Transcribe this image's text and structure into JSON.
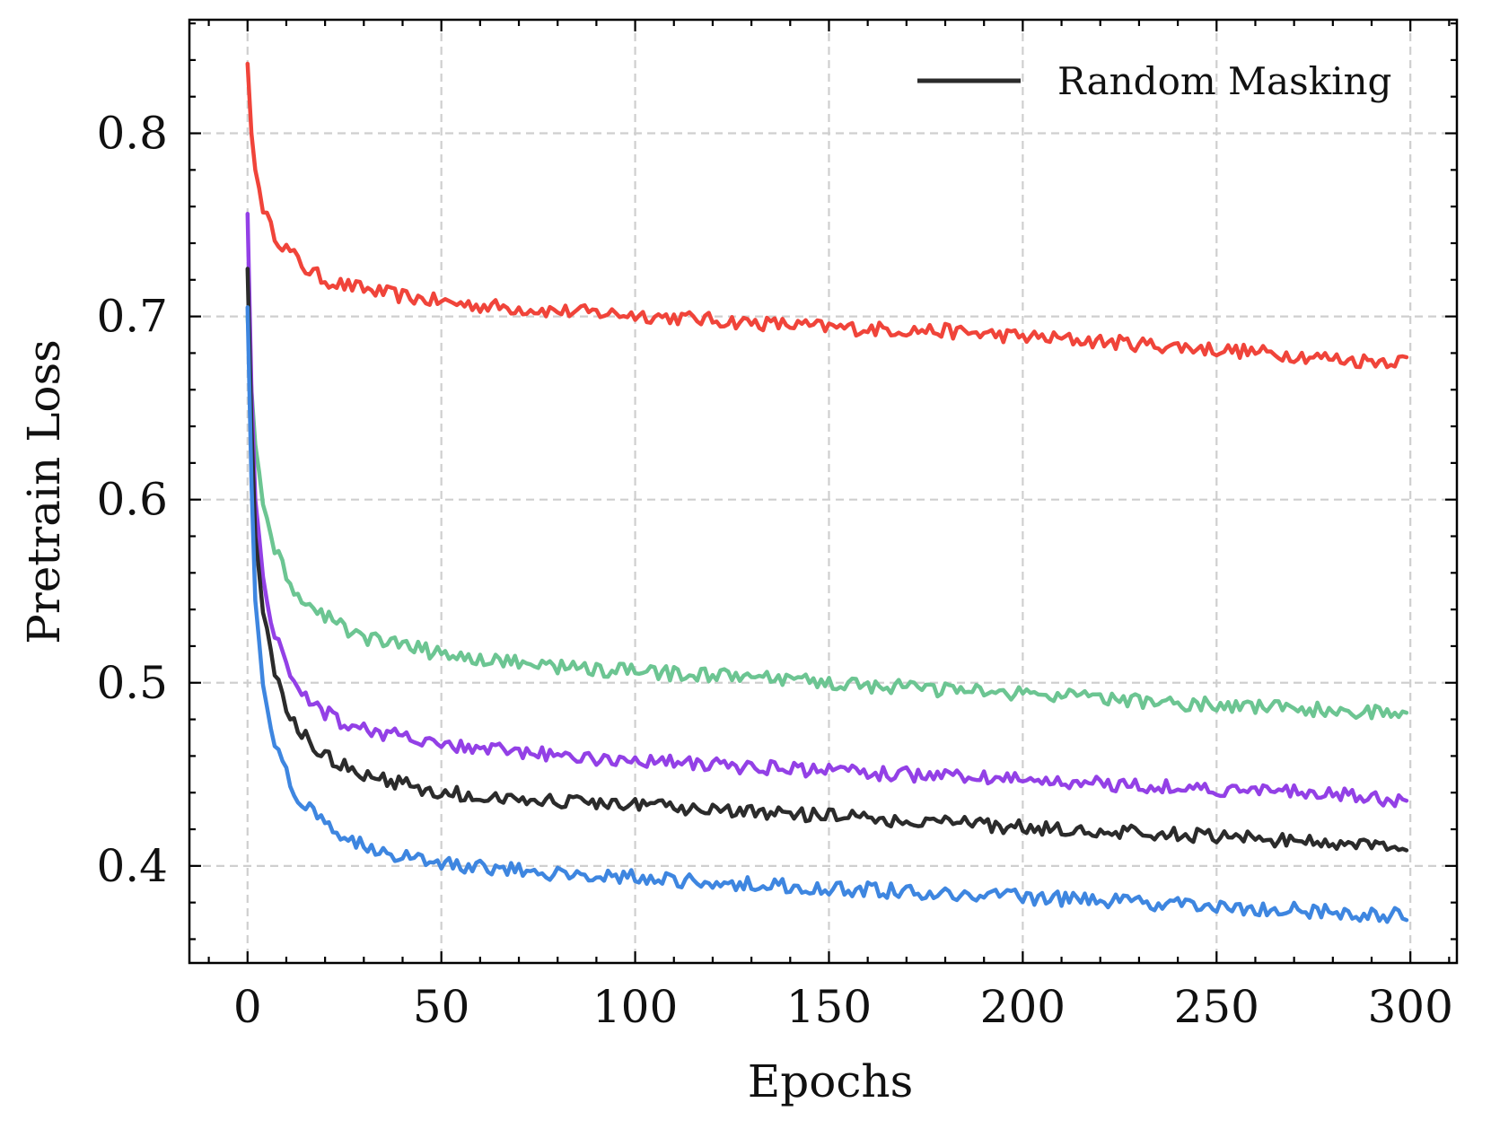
{
  "chart_data": {
    "type": "line",
    "title": "",
    "xlabel": "Epochs",
    "ylabel": "Pretrain Loss",
    "xlim": [
      -15,
      312
    ],
    "ylim": [
      0.347,
      0.862
    ],
    "xticks": [
      0,
      50,
      100,
      150,
      200,
      250,
      300
    ],
    "xtick_labels": [
      "0",
      "50",
      "100",
      "150",
      "200",
      "250",
      "300"
    ],
    "yticks": [
      0.4,
      0.5,
      0.6,
      0.7,
      0.8
    ],
    "ytick_labels": [
      "0.4",
      "0.5",
      "0.6",
      "0.7",
      "0.8"
    ],
    "x_minor_step": 10,
    "y_minor_step": 0.02,
    "grid": true,
    "legend": {
      "position": "top-right",
      "entries": [
        {
          "label": "Random Masking",
          "color": "#2b2b2b"
        }
      ]
    },
    "series": [
      {
        "name": "red",
        "color": "#f0443a",
        "x": [
          0,
          1,
          2,
          4,
          6,
          8,
          10,
          12,
          15,
          20,
          25,
          30,
          40,
          50,
          60,
          80,
          100,
          120,
          150,
          180,
          200,
          230,
          250,
          270,
          285,
          299
        ],
        "y": [
          0.838,
          0.8,
          0.78,
          0.76,
          0.748,
          0.742,
          0.737,
          0.733,
          0.726,
          0.72,
          0.717,
          0.715,
          0.711,
          0.708,
          0.706,
          0.703,
          0.701,
          0.698,
          0.694,
          0.692,
          0.689,
          0.685,
          0.682,
          0.679,
          0.676,
          0.676
        ]
      },
      {
        "name": "green",
        "color": "#6cc592",
        "x": [
          0,
          1,
          2,
          4,
          6,
          8,
          10,
          12,
          15,
          20,
          25,
          30,
          40,
          50,
          60,
          80,
          100,
          120,
          150,
          180,
          200,
          230,
          250,
          270,
          285,
          299
        ],
        "y": [
          0.7,
          0.66,
          0.63,
          0.6,
          0.58,
          0.568,
          0.558,
          0.55,
          0.543,
          0.536,
          0.53,
          0.525,
          0.52,
          0.516,
          0.513,
          0.509,
          0.506,
          0.504,
          0.5,
          0.496,
          0.494,
          0.49,
          0.488,
          0.486,
          0.484,
          0.483
        ]
      },
      {
        "name": "purple",
        "color": "#9340e6",
        "x": [
          0,
          1,
          2,
          4,
          6,
          8,
          10,
          12,
          15,
          20,
          25,
          30,
          40,
          50,
          60,
          80,
          100,
          120,
          150,
          180,
          200,
          230,
          250,
          270,
          285,
          299
        ],
        "y": [
          0.756,
          0.66,
          0.6,
          0.56,
          0.535,
          0.52,
          0.508,
          0.5,
          0.493,
          0.484,
          0.478,
          0.475,
          0.47,
          0.466,
          0.464,
          0.46,
          0.458,
          0.455,
          0.452,
          0.449,
          0.447,
          0.444,
          0.442,
          0.44,
          0.438,
          0.436
        ]
      },
      {
        "name": "Random Masking",
        "color": "#2b2b2b",
        "x": [
          0,
          1,
          2,
          4,
          6,
          8,
          10,
          12,
          15,
          20,
          25,
          30,
          40,
          50,
          60,
          80,
          100,
          120,
          150,
          180,
          200,
          230,
          250,
          270,
          285,
          299
        ],
        "y": [
          0.726,
          0.64,
          0.58,
          0.54,
          0.515,
          0.498,
          0.485,
          0.477,
          0.47,
          0.46,
          0.455,
          0.45,
          0.445,
          0.44,
          0.438,
          0.435,
          0.433,
          0.43,
          0.427,
          0.424,
          0.421,
          0.418,
          0.416,
          0.414,
          0.412,
          0.41
        ]
      },
      {
        "name": "blue",
        "color": "#3e86e0",
        "x": [
          0,
          1,
          2,
          4,
          6,
          8,
          10,
          12,
          15,
          20,
          25,
          30,
          40,
          50,
          60,
          80,
          100,
          120,
          150,
          180,
          200,
          230,
          250,
          270,
          285,
          299
        ],
        "y": [
          0.705,
          0.61,
          0.545,
          0.5,
          0.475,
          0.46,
          0.45,
          0.44,
          0.433,
          0.422,
          0.416,
          0.411,
          0.405,
          0.401,
          0.399,
          0.396,
          0.394,
          0.391,
          0.388,
          0.385,
          0.383,
          0.38,
          0.378,
          0.376,
          0.374,
          0.373
        ]
      }
    ]
  }
}
